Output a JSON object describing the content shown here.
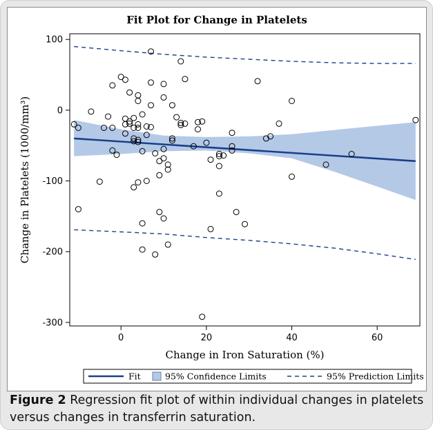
{
  "caption": {
    "label": "Figure 2",
    "text": " Regression fit plot of within individual changes in platelets versus changes in transferrin saturation."
  },
  "chart_data": {
    "type": "scatter",
    "title": "Fit Plot for Change in Platelets",
    "xlabel": "Change in Iron Saturation (%)",
    "ylabel": "Change in Platelets  (1000/mm³)",
    "xlim": [
      -12,
      70
    ],
    "ylim": [
      -305,
      108
    ],
    "x_ticks": [
      0,
      20,
      40,
      60
    ],
    "y_ticks": [
      100,
      0,
      -100,
      -200,
      -300
    ],
    "grid": false,
    "legend_position": "bottom",
    "colors": {
      "fit": "#1a3e8a",
      "ci_fill": "#b4c9e6",
      "prediction": "#1a3e8a",
      "points": "#000000"
    },
    "legend": [
      {
        "type": "line",
        "label": "Fit"
      },
      {
        "type": "band",
        "label": "95% Confidence Limits"
      },
      {
        "type": "dashed",
        "label": "95% Prediction Limits"
      }
    ],
    "fit": {
      "x": [
        -11,
        69
      ],
      "y": [
        -40,
        -72
      ]
    },
    "confidence_band": {
      "x": [
        -11,
        0,
        10,
        20,
        30,
        40,
        50,
        60,
        69
      ],
      "upper": [
        -14,
        -27,
        -36,
        -38,
        -37,
        -34,
        -28,
        -22,
        -17
      ],
      "lower": [
        -65,
        -62,
        -58,
        -57,
        -61,
        -68,
        -87,
        -108,
        -127
      ]
    },
    "prediction_limits": {
      "x": [
        -11,
        0,
        10,
        20,
        30,
        40,
        50,
        60,
        69
      ],
      "upper": [
        90,
        84,
        79,
        75,
        72,
        69,
        67,
        66,
        66
      ],
      "lower": [
        -169,
        -172,
        -175,
        -180,
        -184,
        -189,
        -195,
        -203,
        -211
      ]
    },
    "points": [
      [
        -11,
        -20
      ],
      [
        -10,
        -25
      ],
      [
        -10,
        -140
      ],
      [
        -7,
        -2
      ],
      [
        -5,
        -101
      ],
      [
        -4,
        -25
      ],
      [
        -3,
        -9
      ],
      [
        -2,
        35
      ],
      [
        -2,
        -25
      ],
      [
        -2,
        -57
      ],
      [
        -1,
        -63
      ],
      [
        0,
        47
      ],
      [
        1,
        43
      ],
      [
        1,
        -12
      ],
      [
        1,
        -20
      ],
      [
        1,
        -33
      ],
      [
        2,
        25
      ],
      [
        2,
        -16
      ],
      [
        2,
        -19
      ],
      [
        3,
        -11
      ],
      [
        3,
        -25
      ],
      [
        3,
        -40
      ],
      [
        3,
        -44
      ],
      [
        3,
        -109
      ],
      [
        4,
        21
      ],
      [
        4,
        13
      ],
      [
        4,
        -20
      ],
      [
        4,
        -25
      ],
      [
        4,
        -42
      ],
      [
        4,
        -45
      ],
      [
        4,
        -102
      ],
      [
        5,
        -6
      ],
      [
        5,
        -58
      ],
      [
        5,
        -160
      ],
      [
        5,
        -197
      ],
      [
        6,
        -23
      ],
      [
        6,
        -35
      ],
      [
        6,
        -100
      ],
      [
        7,
        83
      ],
      [
        7,
        39
      ],
      [
        7,
        7
      ],
      [
        7,
        -24
      ],
      [
        8,
        -61
      ],
      [
        8,
        -204
      ],
      [
        9,
        -72
      ],
      [
        9,
        -92
      ],
      [
        9,
        -144
      ],
      [
        10,
        37
      ],
      [
        10,
        18
      ],
      [
        10,
        -55
      ],
      [
        10,
        -68
      ],
      [
        10,
        -153
      ],
      [
        11,
        -77
      ],
      [
        11,
        -84
      ],
      [
        11,
        -190
      ],
      [
        12,
        7
      ],
      [
        12,
        -40
      ],
      [
        12,
        -43
      ],
      [
        13,
        -10
      ],
      [
        14,
        69
      ],
      [
        14,
        -18
      ],
      [
        14,
        -21
      ],
      [
        15,
        44
      ],
      [
        15,
        -19
      ],
      [
        17,
        -51
      ],
      [
        18,
        -17
      ],
      [
        18,
        -27
      ],
      [
        19,
        -16
      ],
      [
        19,
        -292
      ],
      [
        20,
        -46
      ],
      [
        21,
        -70
      ],
      [
        21,
        -168
      ],
      [
        23,
        -62
      ],
      [
        23,
        -65
      ],
      [
        23,
        -79
      ],
      [
        23,
        -118
      ],
      [
        24,
        -64
      ],
      [
        26,
        -32
      ],
      [
        26,
        -51
      ],
      [
        26,
        -57
      ],
      [
        27,
        -144
      ],
      [
        29,
        -161
      ],
      [
        32,
        41
      ],
      [
        34,
        -40
      ],
      [
        35,
        -37
      ],
      [
        37,
        -19
      ],
      [
        40,
        13
      ],
      [
        40,
        -94
      ],
      [
        48,
        -77
      ],
      [
        54,
        -62
      ],
      [
        69,
        -14
      ]
    ]
  }
}
